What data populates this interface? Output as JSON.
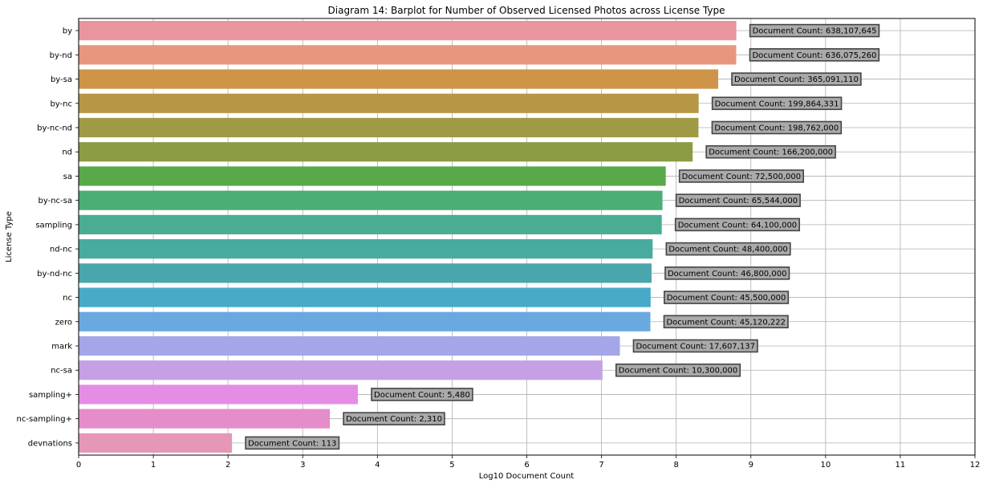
{
  "chart_data": {
    "type": "bar",
    "orientation": "horizontal",
    "title": "Diagram 14: Barplot for Number of Observed Licensed Photos across License Type",
    "xlabel": "Log10 Document Count",
    "ylabel": "License Type",
    "xlim": [
      0,
      12
    ],
    "xticks": [
      "0",
      "1",
      "2",
      "3",
      "4",
      "5",
      "6",
      "7",
      "8",
      "9",
      "10",
      "11",
      "12"
    ],
    "grid": true,
    "categories": [
      "by",
      "by-nd",
      "by-sa",
      "by-nc",
      "by-nc-nd",
      "nd",
      "sa",
      "by-nc-sa",
      "sampling",
      "nd-nc",
      "by-nd-nc",
      "nc",
      "zero",
      "mark",
      "nc-sa",
      "sampling+",
      "nc-sampling+",
      "devnations"
    ],
    "values": [
      8.805,
      8.8036,
      8.5624,
      8.3007,
      8.2983,
      8.2206,
      7.8603,
      7.8165,
      7.8069,
      7.6848,
      7.6702,
      7.658,
      7.6543,
      7.2457,
      7.0128,
      3.7388,
      3.3636,
      2.0531
    ],
    "labels": [
      "Document Count: 638,107,645",
      "Document Count: 636,075,260",
      "Document Count: 365,091,110",
      "Document Count: 199,864,331",
      "Document Count: 198,762,000",
      "Document Count: 166,200,000",
      "Document Count: 72,500,000",
      "Document Count: 65,544,000",
      "Document Count: 64,100,000",
      "Document Count: 48,400,000",
      "Document Count: 46,800,000",
      "Document Count: 45,500,000",
      "Document Count: 45,120,222",
      "Document Count: 17,607,137",
      "Document Count: 10,300,000",
      "Document Count: 5,480",
      "Document Count: 2,310",
      "Document Count: 113"
    ],
    "colors": [
      "#e8959f",
      "#e7977d",
      "#cf9448",
      "#b69745",
      "#a09a46",
      "#8c9c44",
      "#58a94a",
      "#4bae75",
      "#4aad91",
      "#49aa9f",
      "#4aa6ad",
      "#48aac7",
      "#6aa9df",
      "#a3a6e7",
      "#c5a0e5",
      "#e58ce5",
      "#e58dc9",
      "#e697b8"
    ]
  }
}
